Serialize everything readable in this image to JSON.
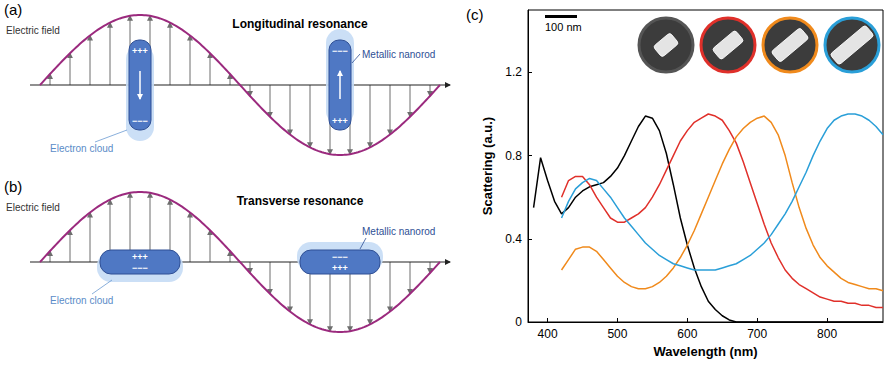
{
  "panel_a": {
    "label": "(a)",
    "title": "Longitudinal resonance",
    "wave_label": "Electric field",
    "rod_label": "Metallic nanorod",
    "cloud_label": "Electron cloud",
    "rods": [
      {
        "top": "+++",
        "bottom": "−−−"
      },
      {
        "top": "−−−",
        "bottom": "+++"
      }
    ]
  },
  "panel_b": {
    "label": "(b)",
    "title": "Transverse resonance",
    "wave_label": "Electric field",
    "rod_label": "Metallic nanorod",
    "cloud_label": "Electron cloud",
    "rods": [
      {
        "top": "+++",
        "bottom": "−−−"
      },
      {
        "top": "−−−",
        "bottom": "+++"
      }
    ]
  },
  "chart_data": {
    "type": "line",
    "panel_label": "(c)",
    "scale_bar": "100 nm",
    "x_label": "Wavelength (nm)",
    "y_label": "Scattering (a.u.)",
    "x": [
      380,
      390,
      400,
      410,
      420,
      430,
      440,
      450,
      460,
      470,
      480,
      490,
      500,
      510,
      520,
      530,
      540,
      550,
      560,
      570,
      580,
      590,
      600,
      610,
      620,
      630,
      640,
      650,
      660,
      670,
      680,
      690,
      700,
      710,
      720,
      730,
      740,
      750,
      760,
      770,
      780,
      790,
      800,
      810,
      820,
      830,
      840,
      850,
      860,
      870,
      880
    ],
    "series": [
      {
        "color": "#000000",
        "values": [
          0.55,
          0.79,
          0.68,
          0.58,
          0.52,
          0.55,
          0.6,
          0.63,
          0.65,
          0.66,
          0.67,
          0.7,
          0.74,
          0.8,
          0.87,
          0.94,
          0.99,
          0.98,
          0.92,
          0.81,
          0.66,
          0.5,
          0.37,
          0.26,
          0.17,
          0.1,
          0.06,
          0.03,
          0.01,
          0,
          0,
          0,
          0,
          0,
          0,
          0,
          0,
          0,
          0,
          0,
          0,
          0,
          0,
          0,
          0,
          0,
          0,
          0,
          0,
          0,
          0
        ]
      },
      {
        "color": "#e0302a",
        "values": [
          null,
          null,
          null,
          null,
          0.6,
          0.68,
          0.7,
          0.7,
          0.66,
          0.6,
          0.55,
          0.5,
          0.48,
          0.48,
          0.5,
          0.52,
          0.55,
          0.6,
          0.66,
          0.73,
          0.8,
          0.87,
          0.92,
          0.96,
          0.98,
          1.0,
          0.99,
          0.97,
          0.92,
          0.86,
          0.77,
          0.67,
          0.57,
          0.47,
          0.38,
          0.31,
          0.25,
          0.21,
          0.18,
          0.16,
          0.14,
          0.12,
          0.11,
          0.1,
          0.1,
          0.09,
          0.09,
          0.08,
          0.08,
          0.07,
          0.07
        ]
      },
      {
        "color": "#f08a1c",
        "values": [
          null,
          null,
          null,
          null,
          0.25,
          0.3,
          0.35,
          0.36,
          0.36,
          0.34,
          0.3,
          0.26,
          0.22,
          0.19,
          0.17,
          0.16,
          0.16,
          0.17,
          0.19,
          0.22,
          0.26,
          0.31,
          0.37,
          0.44,
          0.52,
          0.6,
          0.68,
          0.76,
          0.83,
          0.89,
          0.93,
          0.96,
          0.98,
          0.99,
          0.96,
          0.9,
          0.8,
          0.67,
          0.55,
          0.45,
          0.37,
          0.31,
          0.27,
          0.24,
          0.21,
          0.19,
          0.18,
          0.17,
          0.16,
          0.16,
          0.15
        ]
      },
      {
        "color": "#2a9fd8",
        "values": [
          null,
          null,
          null,
          null,
          0.5,
          0.58,
          0.64,
          0.67,
          0.69,
          0.68,
          0.64,
          0.6,
          0.55,
          0.5,
          0.46,
          0.42,
          0.38,
          0.35,
          0.32,
          0.3,
          0.28,
          0.27,
          0.26,
          0.25,
          0.25,
          0.25,
          0.25,
          0.26,
          0.27,
          0.28,
          0.3,
          0.32,
          0.35,
          0.38,
          0.42,
          0.47,
          0.52,
          0.58,
          0.65,
          0.72,
          0.8,
          0.87,
          0.93,
          0.97,
          0.99,
          1.0,
          1.0,
          0.99,
          0.97,
          0.94,
          0.9
        ]
      }
    ],
    "xlim": [
      372,
      880
    ],
    "ylim": [
      0,
      1.5
    ],
    "xticks": [
      400,
      500,
      600,
      700,
      800
    ],
    "yticks": [
      0,
      0.4,
      0.8,
      1.2
    ],
    "grid": false
  }
}
